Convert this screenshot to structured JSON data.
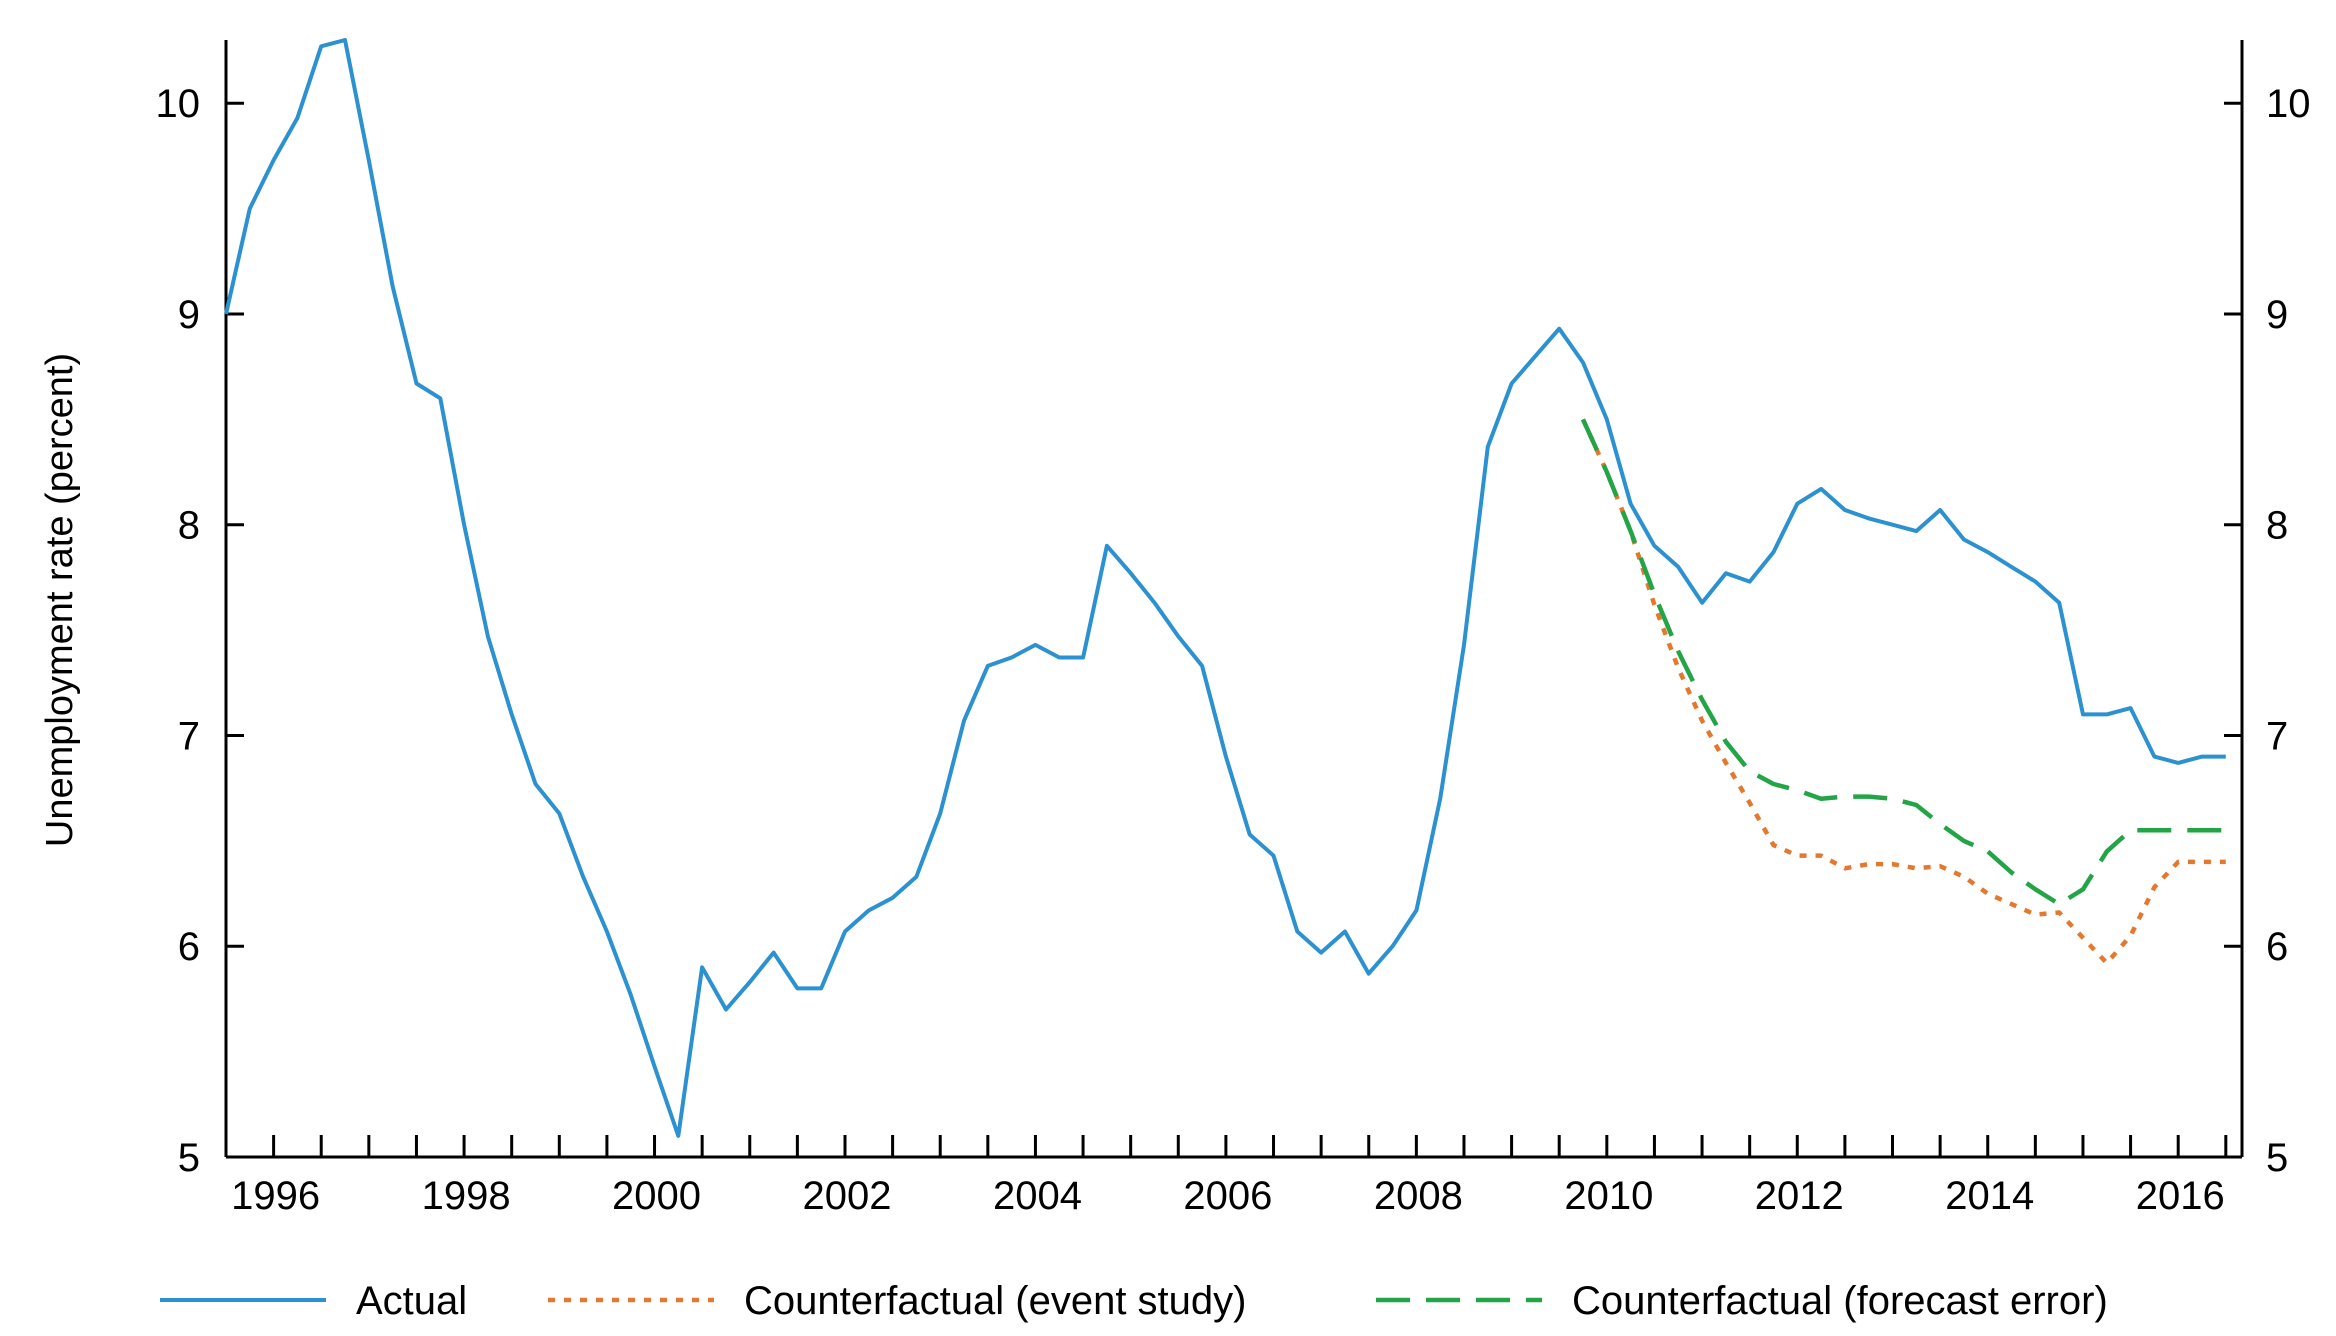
{
  "chart_data": {
    "type": "line",
    "title": "",
    "xlabel": "",
    "ylabel": "Unemployment rate (percent)",
    "xlim": [
      1995.5,
      2016.67
    ],
    "ylim": [
      5,
      10.3
    ],
    "yticks": [
      5,
      6,
      7,
      8,
      9,
      10
    ],
    "xtick_labels": [
      "1996",
      "1998",
      "2000",
      "2002",
      "2004",
      "2006",
      "2008",
      "2010",
      "2012",
      "2014",
      "2016"
    ],
    "x_minor_tick_step": 0.5,
    "right_axis_mirrored": true,
    "grid": false,
    "legend": "bottom",
    "series": [
      {
        "name": "Actual",
        "color": "#2b91d0",
        "style": "solid",
        "x": [
          1995.5,
          1995.75,
          1996.0,
          1996.25,
          1996.5,
          1996.75,
          1997.0,
          1997.25,
          1997.5,
          1997.75,
          1998.0,
          1998.25,
          1998.5,
          1998.75,
          1999.0,
          1999.25,
          1999.5,
          1999.75,
          2000.0,
          2000.25,
          2000.5,
          2000.75,
          2001.0,
          2001.25,
          2001.5,
          2001.75,
          2002.0,
          2002.25,
          2002.5,
          2002.75,
          2003.0,
          2003.25,
          2003.5,
          2003.75,
          2004.0,
          2004.25,
          2004.5,
          2004.75,
          2005.0,
          2005.25,
          2005.5,
          2005.75,
          2006.0,
          2006.25,
          2006.5,
          2006.75,
          2007.0,
          2007.25,
          2007.5,
          2007.75,
          2008.0,
          2008.25,
          2008.5,
          2008.75,
          2009.0,
          2009.25,
          2009.5,
          2009.75,
          2010.0,
          2010.25,
          2010.5,
          2010.75,
          2011.0,
          2011.25,
          2011.5,
          2011.75,
          2012.0,
          2012.25,
          2012.5,
          2012.75,
          2013.0,
          2013.25,
          2013.5,
          2013.75,
          2014.0,
          2014.25,
          2014.5,
          2014.75,
          2015.0,
          2015.25,
          2015.5,
          2015.75,
          2016.0,
          2016.25,
          2016.5
        ],
        "y": [
          9.0,
          9.5,
          9.73,
          9.93,
          10.27,
          10.3,
          9.73,
          9.13,
          8.67,
          8.6,
          8.0,
          7.47,
          7.1,
          6.77,
          6.63,
          6.33,
          6.07,
          5.77,
          5.43,
          5.1,
          5.9,
          5.7,
          5.83,
          5.97,
          5.8,
          5.8,
          6.07,
          6.17,
          6.23,
          6.33,
          6.63,
          7.07,
          7.33,
          7.37,
          7.43,
          7.37,
          7.37,
          7.9,
          7.77,
          7.63,
          7.47,
          7.33,
          6.9,
          6.53,
          6.43,
          6.07,
          5.97,
          6.07,
          5.87,
          6.0,
          6.17,
          6.7,
          7.43,
          8.37,
          8.67,
          8.8,
          8.93,
          8.77,
          8.5,
          8.1,
          7.9,
          7.8,
          7.63,
          7.77,
          7.73,
          7.87,
          8.1,
          8.17,
          8.07,
          8.03,
          8.0,
          7.97,
          8.07,
          7.93,
          7.87,
          7.8,
          7.73,
          7.63,
          7.1,
          7.1,
          7.13,
          6.9,
          6.87,
          6.9,
          6.9
        ]
      },
      {
        "name": "Counterfactual (event study)",
        "color": "#e4782e",
        "style": "dotted",
        "x": [
          2009.75,
          2010.0,
          2010.25,
          2010.5,
          2010.75,
          2011.0,
          2011.25,
          2011.5,
          2011.75,
          2012.0,
          2012.25,
          2012.5,
          2012.75,
          2013.0,
          2013.25,
          2013.5,
          2013.75,
          2014.0,
          2014.25,
          2014.5,
          2014.75,
          2015.0,
          2015.25,
          2015.5,
          2015.75,
          2016.0,
          2016.25,
          2016.5
        ],
        "y": [
          8.5,
          8.25,
          7.97,
          7.62,
          7.32,
          7.07,
          6.87,
          6.68,
          6.48,
          6.43,
          6.43,
          6.37,
          6.39,
          6.39,
          6.37,
          6.38,
          6.33,
          6.25,
          6.2,
          6.15,
          6.16,
          6.04,
          5.92,
          6.05,
          6.28,
          6.4,
          6.4,
          6.4
        ]
      },
      {
        "name": "Counterfactual (forecast error)",
        "color": "#23a446",
        "style": "dashed",
        "x": [
          2009.75,
          2010.0,
          2010.25,
          2010.5,
          2010.75,
          2011.0,
          2011.25,
          2011.5,
          2011.75,
          2012.0,
          2012.25,
          2012.5,
          2012.75,
          2013.0,
          2013.25,
          2013.5,
          2013.75,
          2014.0,
          2014.25,
          2014.5,
          2014.75,
          2015.0,
          2015.25,
          2015.5,
          2015.75,
          2016.0,
          2016.25,
          2016.5
        ],
        "y": [
          8.5,
          8.25,
          7.97,
          7.67,
          7.4,
          7.17,
          6.97,
          6.83,
          6.77,
          6.74,
          6.7,
          6.71,
          6.71,
          6.7,
          6.67,
          6.58,
          6.5,
          6.45,
          6.35,
          6.27,
          6.2,
          6.27,
          6.45,
          6.55,
          6.55,
          6.55,
          6.55,
          6.55
        ]
      }
    ]
  }
}
